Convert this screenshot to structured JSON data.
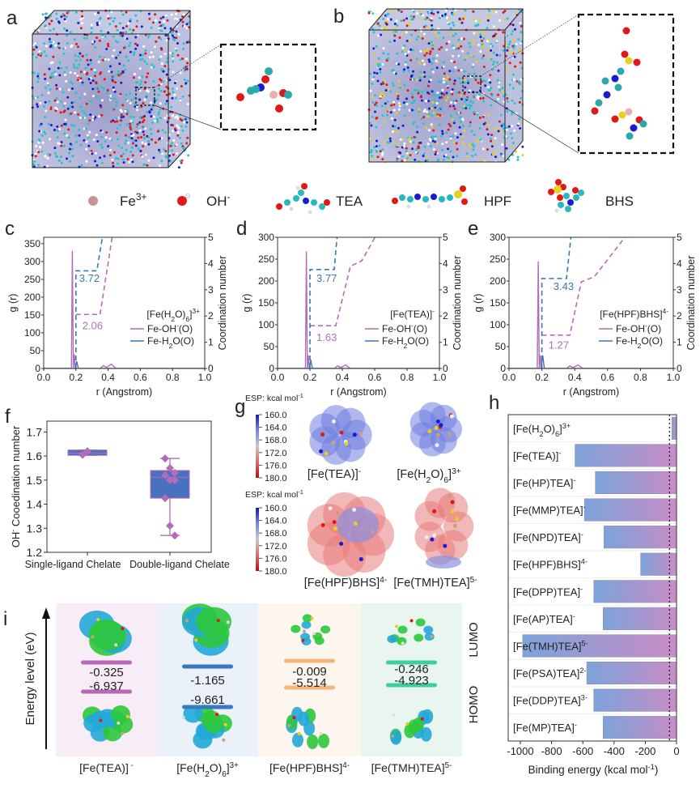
{
  "panel_labels": [
    "a",
    "b",
    "c",
    "d",
    "e",
    "f",
    "g",
    "h",
    "i"
  ],
  "legend": {
    "items": [
      {
        "label": [
          [
            "Fe"
          ],
          [
            "3+",
            "sup"
          ]
        ],
        "icon": "iron-ion-sphere-icon",
        "color": "#c79595"
      },
      {
        "label": [
          [
            "OH"
          ],
          [
            "-",
            "sup"
          ]
        ],
        "icon": "hydroxide-sphere-icon",
        "color": "#e01818"
      },
      {
        "label": [
          [
            "TEA"
          ]
        ],
        "icon": "tea-molecule-icon"
      },
      {
        "label": [
          [
            "HPF"
          ]
        ],
        "icon": "hpf-molecule-icon"
      },
      {
        "label": [
          [
            "BHS"
          ]
        ],
        "icon": "bhs-molecule-icon"
      }
    ]
  },
  "esp": {
    "title": [
      [
        "ESP: kcal mol"
      ],
      [
        "-1",
        "sup"
      ]
    ],
    "ticks": [
      "160.0",
      "164.0",
      "168.0",
      "172.0",
      "176.0",
      "180.0"
    ],
    "colors": [
      "#1a1aa0",
      "#7b86d0",
      "#c8c8c8",
      "#d86e6e",
      "#b01010"
    ],
    "molecules": [
      {
        "label": [
          [
            "[Fe(TEA)]"
          ],
          [
            "-",
            "sup"
          ]
        ],
        "surface": "#6f7ee0"
      },
      {
        "label": [
          [
            "[Fe(H"
          ],
          [
            "2",
            "sub"
          ],
          [
            "O)"
          ],
          [
            "6",
            "sub"
          ],
          [
            "]"
          ],
          [
            "3+",
            "sup"
          ]
        ],
        "surface": "#6f7ee0"
      },
      {
        "label": [
          [
            "[Fe(HPF)BHS]"
          ],
          [
            "4-",
            "sup"
          ]
        ],
        "surface": "#e87c7c"
      },
      {
        "label": [
          [
            "[Fe(TMH)TEA]"
          ],
          [
            "5-",
            "sup"
          ]
        ],
        "surface": "#e87c7c"
      }
    ]
  },
  "chart_data": [
    {
      "panel": "c",
      "type": "line",
      "complex": [
        [
          "[Fe(H"
        ],
        [
          "2",
          "sub"
        ],
        [
          "O)"
        ],
        [
          "6",
          "sub"
        ],
        [
          "]"
        ],
        [
          "3+",
          "sup"
        ]
      ],
      "xlabel": "r (Angstrom)",
      "ylabel": "g (r)",
      "y2label": "Coordination number",
      "xlim": [
        0,
        1
      ],
      "ylim": [
        0,
        368
      ],
      "y2lim": [
        0,
        5
      ],
      "xticks": [
        "0.0",
        "0.2",
        "0.4",
        "0.6",
        "0.8",
        "1.0"
      ],
      "yticks": [
        "0",
        "50",
        "100",
        "150",
        "200",
        "250",
        "300",
        "350"
      ],
      "y2ticks": [
        "0",
        "1",
        "2",
        "3",
        "4",
        "5"
      ],
      "series": [
        {
          "name": [
            [
              "Fe-OH"
            ],
            [
              "-",
              "sup"
            ],
            [
              "(O)"
            ]
          ],
          "color": "#b36cb8",
          "gr": [
            [
              0,
              0
            ],
            [
              0.172,
              0
            ],
            [
              0.178,
              330
            ],
            [
              0.184,
              0
            ],
            [
              0.19,
              40
            ],
            [
              0.196,
              0
            ],
            [
              0.35,
              0
            ],
            [
              0.37,
              8
            ],
            [
              0.39,
              3
            ],
            [
              0.42,
              12
            ],
            [
              0.45,
              0
            ],
            [
              1,
              0
            ]
          ],
          "cn": [
            [
              0.2,
              2.06
            ],
            [
              0.35,
              2.06
            ],
            [
              0.43,
              5.2
            ]
          ]
        },
        {
          "name": [
            [
              "Fe-H"
            ],
            [
              "2",
              "sub"
            ],
            [
              "O(O)"
            ]
          ],
          "color": "#3a78b8",
          "gr": [
            [
              0,
              0
            ],
            [
              0.196,
              0
            ],
            [
              0.205,
              20
            ],
            [
              0.215,
              0
            ],
            [
              1,
              0
            ]
          ],
          "cn": [
            [
              0.2,
              0
            ],
            [
              0.2,
              3.72
            ],
            [
              0.33,
              3.72
            ],
            [
              0.37,
              5.2
            ]
          ]
        }
      ],
      "annotations": [
        {
          "text": "3.72",
          "color": "#3a78b8",
          "x": 0.22,
          "y": 3.3
        },
        {
          "text": "2.06",
          "color": "#b36cb8",
          "x": 0.24,
          "y": 1.5
        }
      ]
    },
    {
      "panel": "d",
      "type": "line",
      "complex": [
        [
          "[Fe(TEA)]"
        ],
        [
          "-",
          "sup"
        ]
      ],
      "xlabel": "r (Angstrom)",
      "ylabel": "g (r)",
      "y2label": "Coordination number",
      "xlim": [
        0,
        1
      ],
      "ylim": [
        0,
        300
      ],
      "y2lim": [
        0,
        5
      ],
      "xticks": [
        "0.0",
        "0.2",
        "0.4",
        "0.6",
        "0.8",
        "1.0"
      ],
      "yticks": [
        "0",
        "50",
        "100",
        "150",
        "200",
        "250",
        "300"
      ],
      "y2ticks": [
        "0",
        "1",
        "2",
        "3",
        "4",
        "5"
      ],
      "series": [
        {
          "name": [
            [
              "Fe-OH"
            ],
            [
              "-",
              "sup"
            ],
            [
              "(O)"
            ]
          ],
          "color": "#b36cb8",
          "gr": [
            [
              0,
              0
            ],
            [
              0.172,
              0
            ],
            [
              0.178,
              268
            ],
            [
              0.184,
              0
            ],
            [
              0.19,
              30
            ],
            [
              0.196,
              0
            ],
            [
              0.35,
              0
            ],
            [
              0.37,
              6
            ],
            [
              0.39,
              2
            ],
            [
              0.42,
              8
            ],
            [
              0.45,
              0
            ],
            [
              1,
              0
            ]
          ],
          "cn": [
            [
              0.2,
              1.63
            ],
            [
              0.36,
              1.63
            ],
            [
              0.45,
              3.9
            ],
            [
              0.52,
              4.1
            ],
            [
              0.62,
              5.2
            ]
          ]
        },
        {
          "name": [
            [
              "Fe-H"
            ],
            [
              "2",
              "sub"
            ],
            [
              "O(O)"
            ]
          ],
          "color": "#3a78b8",
          "gr": [
            [
              0,
              0
            ],
            [
              0.196,
              0
            ],
            [
              0.205,
              20
            ],
            [
              0.215,
              0
            ],
            [
              1,
              0
            ]
          ],
          "cn": [
            [
              0.2,
              0
            ],
            [
              0.2,
              3.77
            ],
            [
              0.35,
              3.77
            ],
            [
              0.37,
              5.2
            ]
          ]
        }
      ],
      "annotations": [
        {
          "text": "3.77",
          "color": "#3a78b8",
          "x": 0.24,
          "y": 3.3
        },
        {
          "text": "1.63",
          "color": "#b36cb8",
          "x": 0.24,
          "y": 1.05
        }
      ]
    },
    {
      "panel": "e",
      "type": "line",
      "complex": [
        [
          "[Fe(HPF)BHS]"
        ],
        [
          "4-",
          "sup"
        ]
      ],
      "xlabel": "r (Angstrom)",
      "ylabel": "g (r)",
      "y2label": "Coordination number",
      "xlim": [
        0,
        1
      ],
      "ylim": [
        0,
        300
      ],
      "y2lim": [
        0,
        5
      ],
      "xticks": [
        "0.0",
        "0.2",
        "0.4",
        "0.6",
        "0.8",
        "1.0"
      ],
      "yticks": [
        "0",
        "50",
        "100",
        "150",
        "200",
        "250",
        "300"
      ],
      "y2ticks": [
        "0",
        "1",
        "2",
        "3",
        "4",
        "5"
      ],
      "series": [
        {
          "name": [
            [
              "Fe-OH"
            ],
            [
              "-",
              "sup"
            ],
            [
              "(O)"
            ]
          ],
          "color": "#b36cb8",
          "gr": [
            [
              0,
              0
            ],
            [
              0.172,
              0
            ],
            [
              0.178,
              245
            ],
            [
              0.184,
              0
            ],
            [
              0.19,
              30
            ],
            [
              0.196,
              0
            ],
            [
              0.35,
              0
            ],
            [
              0.37,
              6
            ],
            [
              0.39,
              2
            ],
            [
              0.42,
              8
            ],
            [
              0.45,
              0
            ],
            [
              1,
              0
            ]
          ],
          "cn": [
            [
              0.2,
              1.27
            ],
            [
              0.37,
              1.27
            ],
            [
              0.44,
              3.3
            ],
            [
              0.52,
              3.5
            ],
            [
              0.73,
              5.2
            ]
          ]
        },
        {
          "name": [
            [
              "Fe-H"
            ],
            [
              "2",
              "sub"
            ],
            [
              "O(O)"
            ]
          ],
          "color": "#3a78b8",
          "gr": [
            [
              0,
              0
            ],
            [
              0.196,
              0
            ],
            [
              0.205,
              30
            ],
            [
              0.215,
              0
            ],
            [
              1,
              0
            ]
          ],
          "cn": [
            [
              0.2,
              0
            ],
            [
              0.2,
              3.43
            ],
            [
              0.35,
              3.43
            ],
            [
              0.38,
              5.2
            ]
          ]
        }
      ],
      "annotations": [
        {
          "text": "3.43",
          "color": "#3a78b8",
          "x": 0.27,
          "y": 3.0
        },
        {
          "text": "1.27",
          "color": "#b36cb8",
          "x": 0.24,
          "y": 0.75
        }
      ]
    },
    {
      "panel": "f",
      "type": "box",
      "ylabel": [
        [
          "OH"
        ],
        [
          "-",
          "sup"
        ],
        [
          " Cooedination number"
        ]
      ],
      "ylim": [
        1.2,
        1.745
      ],
      "yticks": [
        "1.2",
        "1.3",
        "1.4",
        "1.5",
        "1.6",
        "1.7"
      ],
      "categories": [
        "Single-ligand Chelate",
        "Double-ligand Chelate"
      ],
      "box_color": "#4a70c0",
      "point_color": "#b36cb8",
      "boxes": [
        {
          "q1": 1.603,
          "median": 1.612,
          "q3": 1.625,
          "min": 1.603,
          "max": 1.625,
          "points": [
            1.605,
            1.62
          ]
        },
        {
          "q1": 1.425,
          "median": 1.512,
          "q3": 1.54,
          "min": 1.27,
          "max": 1.59,
          "points": [
            1.59,
            1.55,
            1.53,
            1.52,
            1.5,
            1.5,
            1.425,
            1.31,
            1.27
          ]
        }
      ]
    },
    {
      "panel": "h",
      "type": "bar",
      "orientation": "horizontal",
      "xlabel": [
        [
          "Binding energy (kcal mol"
        ],
        [
          "-1",
          "sup"
        ],
        [
          ")"
        ]
      ],
      "xlim": [
        -1000,
        0
      ],
      "xticks": [
        "-1000",
        "-800",
        "-600",
        "-400",
        "-200",
        "0"
      ],
      "reference_line": -45,
      "gradient": [
        "#7ca3da",
        "#c98cc6"
      ],
      "categories": [
        [
          [
            "[Fe(H"
          ],
          [
            "2",
            "sub"
          ],
          [
            "O)"
          ],
          [
            "6",
            "sub"
          ],
          [
            "]"
          ],
          [
            "3+",
            "sup"
          ]
        ],
        [
          [
            "[Fe(TEA)]"
          ],
          [
            "-",
            "sup"
          ]
        ],
        [
          [
            "[Fe(HP)TEA]"
          ],
          [
            "-",
            "sup"
          ]
        ],
        [
          [
            "[Fe(MMP)TEA]"
          ],
          [
            "-",
            "sup"
          ]
        ],
        [
          [
            "[Fe(NPD)TEA]"
          ],
          [
            "-",
            "sup"
          ]
        ],
        [
          [
            "[Fe(HPF)BHS]"
          ],
          [
            "4-",
            "sup"
          ]
        ],
        [
          [
            "[Fe(DPP)TEA]"
          ],
          [
            "-",
            "sup"
          ]
        ],
        [
          [
            "[Fe(AP)TEA]"
          ],
          [
            "-",
            "sup"
          ]
        ],
        [
          [
            "[Fe(TMH)TEA]"
          ],
          [
            "5-",
            "sup"
          ]
        ],
        [
          [
            "[Fe(PSA)TEA]"
          ],
          [
            "2-",
            "sup"
          ]
        ],
        [
          [
            "[Fe(DDP)TEA]"
          ],
          [
            "3-",
            "sup"
          ]
        ],
        [
          [
            "[Fe(MP)TEA]"
          ],
          [
            "-",
            "sup"
          ]
        ]
      ],
      "values": [
        -30,
        -650,
        -520,
        -590,
        -465,
        -230,
        -530,
        -470,
        -985,
        -575,
        -530,
        -470
      ]
    },
    {
      "panel": "i",
      "type": "energy-levels",
      "ylabel": "Energy level (eV)",
      "lumo_label": "LUMO",
      "homo_label": "HOMO",
      "complexes": [
        {
          "label": [
            [
              "[Fe(TEA)]"
            ],
            [
              " -",
              "sup"
            ]
          ],
          "lumo": "-0.325",
          "homo": "-6.937",
          "color": "#b968b8",
          "bg": "#f8edf6"
        },
        {
          "label": [
            [
              "[Fe(H"
            ],
            [
              "2",
              "sub"
            ],
            [
              "O)"
            ],
            [
              "6",
              "sub"
            ],
            [
              "]"
            ],
            [
              "3+",
              "sup"
            ]
          ],
          "lumo": "-1.165",
          "homo": "-9.661",
          "color": "#3a78c0",
          "bg": "#eaf1f8"
        },
        {
          "label": [
            [
              "[Fe(HPF)BHS]"
            ],
            [
              "4-",
              "sup"
            ]
          ],
          "lumo": "-0.009",
          "homo": "-5.514",
          "color": "#f5b57c",
          "bg": "#fdf6ee"
        },
        {
          "label": [
            [
              "[Fe(TMH)TEA]"
            ],
            [
              "5-",
              "sup"
            ]
          ],
          "lumo": "-0.246",
          "homo": "-4.923",
          "color": "#3ccf9a",
          "bg": "#e9f5ef"
        }
      ]
    }
  ]
}
